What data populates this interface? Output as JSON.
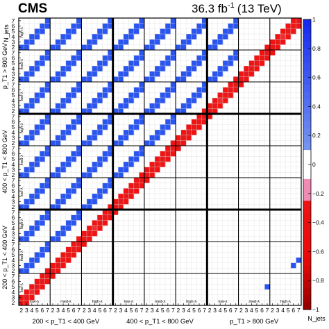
{
  "header": {
    "experiment": "CMS",
    "lumi": "36.3 fb",
    "lumi_exp": "-1",
    "energy": "(13 TeV)"
  },
  "chart_data": {
    "type": "heatmap",
    "title": "",
    "xlabel": "N_jets",
    "ylabel": "N_jets",
    "njets_ticks": [
      "2",
      "3",
      "4",
      "5",
      "6",
      "7"
    ],
    "bottom_axis_groups": [
      "200 < p_T1 < 400 GeV",
      "400 < p_T1 < 800 GeV",
      "p_T1 > 800 GeV"
    ],
    "left_axis_groups": [
      "200 < p_T1 < 400 GeV",
      "400 < p_T1 < 800 GeV",
      "p_T1 > 800 GeV"
    ],
    "inner_bin_labels": [
      "low-λ",
      "med-λ",
      "high-λ"
    ],
    "colorbar": {
      "range": [
        -1,
        1
      ],
      "ticks": [
        -1,
        -0.8,
        -0.6,
        -0.4,
        -0.2,
        0,
        0.2,
        0.4,
        0.6,
        0.8,
        1
      ],
      "tick_labels": [
        "−1",
        "−0.8",
        "−0.6",
        "−0.4",
        "−0.2",
        "0",
        "0.2",
        "0.4",
        "0.6",
        "0.8",
        "1"
      ]
    },
    "diagonal_band": {
      "main_value": -0.8,
      "neighbour_value": -0.85,
      "mid_value": -0.6
    },
    "cross_block_correlations": [
      {
        "x_block": 0,
        "y_block": 8,
        "value": 0.85
      },
      {
        "x_block": 0,
        "y_block": 7,
        "value": 0.85
      },
      {
        "x_block": 0,
        "y_block": 6,
        "value": 0.85
      },
      {
        "x_block": 0,
        "y_block": 5,
        "value": 0.9
      },
      {
        "x_block": 0,
        "y_block": 4,
        "value": 0.9
      },
      {
        "x_block": 0,
        "y_block": 3,
        "value": 0.85
      },
      {
        "x_block": 0,
        "y_block": 2,
        "value": 0.9
      },
      {
        "x_block": 0,
        "y_block": 1,
        "value": 0.85
      },
      {
        "x_block": 1,
        "y_block": 8,
        "value": 0.85
      },
      {
        "x_block": 1,
        "y_block": 7,
        "value": 0.85
      },
      {
        "x_block": 1,
        "y_block": 6,
        "value": 0.85
      },
      {
        "x_block": 1,
        "y_block": 5,
        "value": 0.9
      },
      {
        "x_block": 1,
        "y_block": 4,
        "value": 0.9
      },
      {
        "x_block": 1,
        "y_block": 3,
        "value": 0.85
      },
      {
        "x_block": 1,
        "y_block": 2,
        "value": 0.9
      },
      {
        "x_block": 2,
        "y_block": 8,
        "value": 0.85
      },
      {
        "x_block": 2,
        "y_block": 7,
        "value": 0.85
      },
      {
        "x_block": 2,
        "y_block": 6,
        "value": 0.85
      },
      {
        "x_block": 2,
        "y_block": 5,
        "value": 0.9
      },
      {
        "x_block": 2,
        "y_block": 4,
        "value": 0.9
      },
      {
        "x_block": 2,
        "y_block": 3,
        "value": 0.85
      },
      {
        "x_block": 3,
        "y_block": 8,
        "value": 0.85
      },
      {
        "x_block": 3,
        "y_block": 7,
        "value": 0.85
      },
      {
        "x_block": 3,
        "y_block": 6,
        "value": 0.85
      },
      {
        "x_block": 3,
        "y_block": 5,
        "value": 0.9
      },
      {
        "x_block": 3,
        "y_block": 4,
        "value": 0.9
      },
      {
        "x_block": 4,
        "y_block": 8,
        "value": 0.85
      },
      {
        "x_block": 4,
        "y_block": 7,
        "value": 0.85
      },
      {
        "x_block": 4,
        "y_block": 6,
        "value": 0.85
      },
      {
        "x_block": 4,
        "y_block": 5,
        "value": 0.9
      },
      {
        "x_block": 5,
        "y_block": 8,
        "value": 0.85
      },
      {
        "x_block": 5,
        "y_block": 7,
        "value": 0.85
      },
      {
        "x_block": 5,
        "y_block": 6,
        "value": 0.85
      },
      {
        "x_block": 6,
        "y_block": 8,
        "value": 0.85
      },
      {
        "x_block": 6,
        "y_block": 7,
        "value": 0.85
      }
    ],
    "sparse_high_pt": {
      "x_block": 7,
      "y_block": 0,
      "cells": [
        [
          5,
          3,
          0.85
        ],
        [
          6,
          4,
          0.85
        ],
        [
          7,
          5,
          0.85
        ]
      ]
    },
    "sparse_high_pt2": {
      "x_block": 8,
      "y_block": 1,
      "cells": [
        [
          4,
          1,
          0.85
        ],
        [
          5,
          2,
          0.85
        ],
        [
          6,
          3,
          0.85
        ]
      ]
    }
  }
}
